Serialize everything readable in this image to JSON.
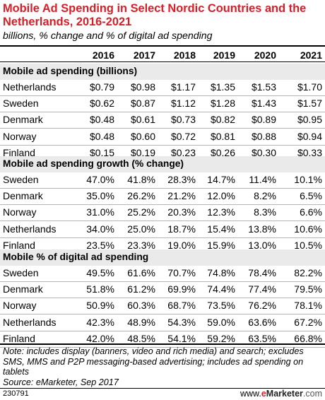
{
  "header": {
    "title": "Mobile Ad Spending in Select Nordic Countries and the Netherlands, 2016-2021",
    "subtitle": "billions, % change and % of digital ad spending"
  },
  "chart_data": {
    "type": "table",
    "columns": [
      "2016",
      "2017",
      "2018",
      "2019",
      "2020",
      "2021"
    ],
    "sections": [
      {
        "title": "Mobile ad spending (billions)",
        "rows": [
          {
            "label": "Netherlands",
            "values": [
              "$0.79",
              "$0.98",
              "$1.17",
              "$1.35",
              "$1.53",
              "$1.70"
            ]
          },
          {
            "label": "Sweden",
            "values": [
              "$0.62",
              "$0.87",
              "$1.12",
              "$1.28",
              "$1.43",
              "$1.57"
            ]
          },
          {
            "label": "Denmark",
            "values": [
              "$0.48",
              "$0.61",
              "$0.73",
              "$0.82",
              "$0.89",
              "$0.95"
            ]
          },
          {
            "label": "Norway",
            "values": [
              "$0.48",
              "$0.60",
              "$0.72",
              "$0.81",
              "$0.88",
              "$0.94"
            ]
          },
          {
            "label": "Finland",
            "values": [
              "$0.15",
              "$0.19",
              "$0.23",
              "$0.26",
              "$0.30",
              "$0.33"
            ]
          }
        ]
      },
      {
        "title": "Mobile ad spending growth (% change)",
        "rows": [
          {
            "label": "Sweden",
            "values": [
              "47.0%",
              "41.8%",
              "28.3%",
              "14.7%",
              "11.4%",
              "10.1%"
            ]
          },
          {
            "label": "Denmark",
            "values": [
              "35.0%",
              "26.2%",
              "21.2%",
              "12.0%",
              "8.2%",
              "6.5%"
            ]
          },
          {
            "label": "Norway",
            "values": [
              "31.0%",
              "25.2%",
              "20.3%",
              "12.3%",
              "8.3%",
              "6.6%"
            ]
          },
          {
            "label": "Netherlands",
            "values": [
              "34.0%",
              "25.0%",
              "18.7%",
              "15.4%",
              "13.8%",
              "10.6%"
            ]
          },
          {
            "label": "Finland",
            "values": [
              "23.5%",
              "23.3%",
              "19.0%",
              "15.9%",
              "13.0%",
              "10.5%"
            ]
          }
        ]
      },
      {
        "title": "Mobile % of digital ad spending",
        "rows": [
          {
            "label": "Sweden",
            "values": [
              "49.5%",
              "61.6%",
              "70.7%",
              "74.8%",
              "78.4%",
              "82.2%"
            ]
          },
          {
            "label": "Denmark",
            "values": [
              "51.8%",
              "61.2%",
              "69.9%",
              "74.4%",
              "77.4%",
              "79.5%"
            ]
          },
          {
            "label": "Norway",
            "values": [
              "50.9%",
              "60.3%",
              "68.7%",
              "73.5%",
              "76.2%",
              "78.1%"
            ]
          },
          {
            "label": "Netherlands",
            "values": [
              "42.3%",
              "48.9%",
              "54.3%",
              "59.0%",
              "63.6%",
              "67.2%"
            ]
          },
          {
            "label": "Finland",
            "values": [
              "42.0%",
              "48.5%",
              "54.1%",
              "59.2%",
              "63.5%",
              "66.8%"
            ]
          }
        ]
      }
    ]
  },
  "footer": {
    "note": "Note: includes display (banners, video and rich media) and search; excludes SMS, MMS and P2P messaging-based advertising; includes ad spending on tablets",
    "source": "Source: eMarketer, Sep 2017",
    "chart_id": "230791",
    "brand_www": "www.",
    "brand_e": "e",
    "brand_marketer": "Marketer",
    "brand_com": ".com"
  },
  "colors": {
    "title": "#d71e28",
    "section_band": "#eaeaea",
    "row_rule": "#b5b5b5"
  }
}
